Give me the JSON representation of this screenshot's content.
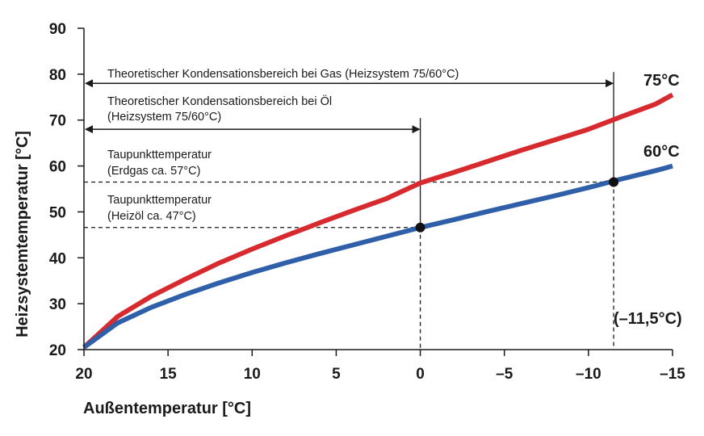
{
  "chart_data": {
    "type": "line",
    "xlabel": "Außentemperatur [°C]",
    "ylabel": "Heizsystemtemperatur [°C]",
    "xlim": [
      20,
      -15
    ],
    "ylim": [
      20,
      90
    ],
    "x_ticks": [
      20,
      15,
      10,
      5,
      0,
      -5,
      -10,
      -15
    ],
    "x_tick_labels": [
      "20",
      "15",
      "10",
      "5",
      "0",
      "–5",
      "–10",
      "–15"
    ],
    "y_ticks": [
      20,
      30,
      40,
      50,
      60,
      70,
      80,
      90
    ],
    "y_tick_labels": [
      "20",
      "30",
      "40",
      "50",
      "60",
      "70",
      "80",
      "90"
    ],
    "grid": false,
    "series": [
      {
        "name": "75°C",
        "color": "#d62a2e",
        "x": [
          20,
          18,
          16,
          14,
          12,
          10,
          8,
          6,
          4,
          2,
          0,
          -2,
          -4,
          -6,
          -8,
          -10,
          -12,
          -14,
          -15
        ],
        "y": [
          20.5,
          27.2,
          31.6,
          35.3,
          38.8,
          41.9,
          44.8,
          47.6,
          50.3,
          52.9,
          56.3,
          58.6,
          61.0,
          63.4,
          65.7,
          68.0,
          70.8,
          73.5,
          75.5
        ]
      },
      {
        "name": "60°C",
        "color": "#2e5fa8",
        "x": [
          20,
          18,
          16,
          14,
          12,
          10,
          8,
          6,
          4,
          2,
          0,
          -2,
          -4,
          -6,
          -8,
          -10,
          -12,
          -14,
          -15
        ],
        "y": [
          20.5,
          25.8,
          29.2,
          32.0,
          34.5,
          36.8,
          38.9,
          40.9,
          42.8,
          44.7,
          46.6,
          48.3,
          50.1,
          51.8,
          53.5,
          55.3,
          57.2,
          59.0,
          60.0
        ]
      }
    ],
    "points": [
      {
        "x": 0,
        "y": 46.6
      },
      {
        "x": -11.5,
        "y": 56.5
      }
    ],
    "reference_lines": {
      "dew_gas_y": 56.5,
      "dew_oil_y": 46.6,
      "gas_arrow_y": 78,
      "oil_arrow_y": 68,
      "gas_limit_x": -11.5,
      "oil_limit_x": 0
    },
    "annotations": {
      "gas_range": "Theoretischer Kondensationsbereich bei Gas (Heizsystem 75/60°C)",
      "oil_range_line1": "Theoretischer Kondensationsbereich bei Öl",
      "oil_range_line2": "(Heizsystem 75/60°C)",
      "dew_gas_line1": "Taupunkttemperatur",
      "dew_gas_line2": "(Erdgas ca. 57°C)",
      "dew_oil_line1": "Taupunkttemperatur",
      "dew_oil_line2": "(Heizöl ca. 47°C)",
      "x_marker": "(–11,5°C)"
    }
  }
}
